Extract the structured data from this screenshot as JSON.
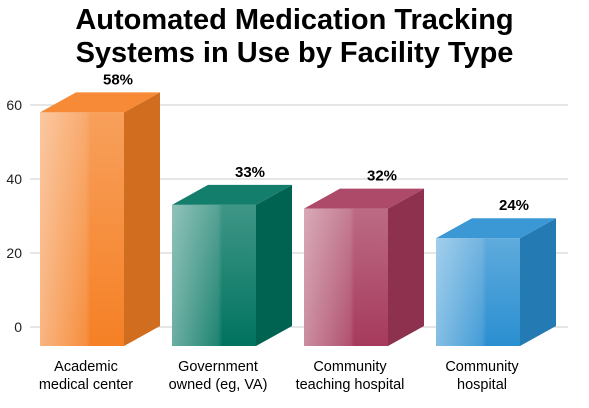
{
  "title_lines": [
    "Automated Medication Tracking",
    "Systems in Use by Facility Type"
  ],
  "colors": {
    "orange": "#f58025",
    "teal": "#00735f",
    "raspberry": "#a63a5c",
    "blue": "#2a8fd1",
    "grid": "#cccccc"
  },
  "chart_data": {
    "type": "bar",
    "title": "Automated Medication Tracking Systems in Use by Facility Type",
    "categories": [
      [
        "Academic",
        "medical center"
      ],
      [
        "Government",
        "owned (eg, VA)"
      ],
      [
        "Community",
        "teaching hospital"
      ],
      [
        "Community",
        "hospital"
      ]
    ],
    "values": [
      58,
      33,
      32,
      24
    ],
    "value_labels": [
      "58%",
      "33%",
      "32%",
      "24%"
    ],
    "bar_colors": [
      "orange",
      "teal",
      "raspberry",
      "blue"
    ],
    "ylim": [
      0,
      60
    ],
    "yticks": [
      0,
      20,
      40,
      60
    ],
    "grid": true,
    "style": "3d-boxes"
  }
}
